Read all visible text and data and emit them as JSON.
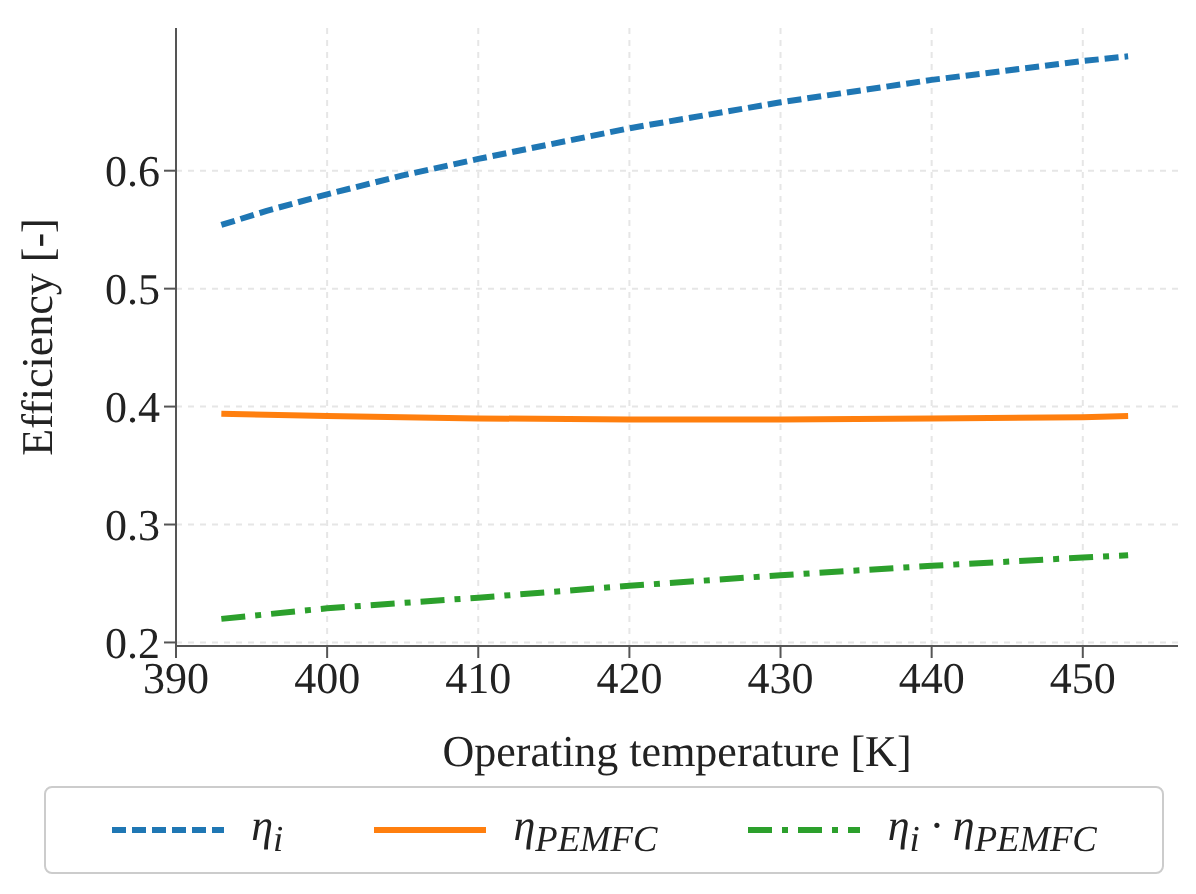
{
  "chart_data": {
    "type": "line",
    "xlabel": "Operating temperature [K]",
    "ylabel": "Efficiency [-]",
    "xlim": [
      390,
      456.3
    ],
    "xticks": [
      390,
      400,
      410,
      420,
      430,
      440,
      450
    ],
    "ylim": [
      0.197,
      0.721
    ],
    "yticks": [
      0.2,
      0.3,
      0.4,
      0.5,
      0.6
    ],
    "grid": true,
    "legend": "bottom",
    "marker": "none",
    "series": [
      {
        "name": "η$_{i}$",
        "color": "#1f77b4",
        "line_style": "dashed",
        "x": [
          393,
          396,
          400,
          405,
          410,
          420,
          430,
          440,
          450,
          453
        ],
        "values": [
          0.554,
          0.566,
          0.58,
          0.596,
          0.61,
          0.636,
          0.658,
          0.677,
          0.693,
          0.697
        ]
      },
      {
        "name": "η$_{PEMFC}$",
        "color": "#ff7f0e",
        "line_style": "solid",
        "x": [
          393,
          400,
          410,
          420,
          425,
          430,
          440,
          450,
          453
        ],
        "values": [
          0.394,
          0.392,
          0.39,
          0.389,
          0.389,
          0.389,
          0.39,
          0.391,
          0.392
        ]
      },
      {
        "name": "η$_{i}$ · η$_{PEMFC}$",
        "color": "#2ca02c",
        "line_style": "dashdot",
        "x": [
          393,
          400,
          410,
          420,
          430,
          440,
          450,
          453
        ],
        "values": [
          0.22,
          0.229,
          0.238,
          0.248,
          0.257,
          0.265,
          0.272,
          0.274
        ]
      }
    ]
  }
}
